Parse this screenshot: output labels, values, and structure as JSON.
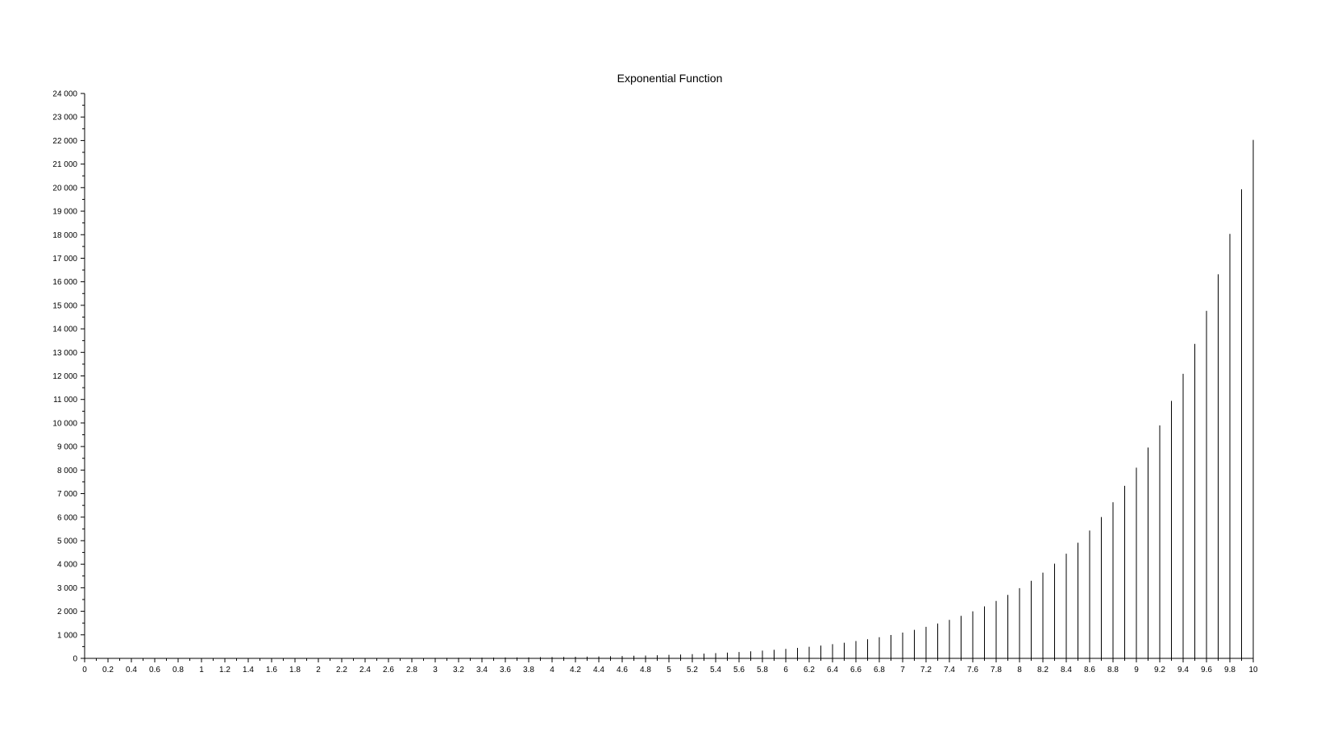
{
  "chart_data": {
    "type": "stem",
    "title": "Exponential Function",
    "xlabel": "",
    "ylabel": "",
    "xlim": [
      0,
      10
    ],
    "ylim": [
      0,
      24000
    ],
    "x_ticks": [
      0,
      0.2,
      0.4,
      0.6,
      0.8,
      1,
      1.2,
      1.4,
      1.6,
      1.8,
      2,
      2.2,
      2.4,
      2.6,
      2.8,
      3,
      3.2,
      3.4,
      3.6,
      3.8,
      4,
      4.2,
      4.4,
      4.6,
      4.8,
      5,
      5.2,
      5.4,
      5.6,
      5.8,
      6,
      6.2,
      6.4,
      6.6,
      6.8,
      7,
      7.2,
      7.4,
      7.6,
      7.8,
      8,
      8.2,
      8.4,
      8.6,
      8.8,
      9,
      9.2,
      9.4,
      9.6,
      9.8,
      10
    ],
    "x_tick_labels": [
      "0",
      "0.2",
      "0.4",
      "0.6",
      "0.8",
      "1",
      "1.2",
      "1.4",
      "1.6",
      "1.8",
      "2",
      "2.2",
      "2.4",
      "2.6",
      "2.8",
      "3",
      "3.2",
      "3.4",
      "3.6",
      "3.8",
      "4",
      "4.2",
      "4.4",
      "4.6",
      "4.8",
      "5",
      "5.2",
      "5.4",
      "5.6",
      "5.8",
      "6",
      "6.2",
      "6.4",
      "6.6",
      "6.8",
      "7",
      "7.2",
      "7.4",
      "7.6",
      "7.8",
      "8",
      "8.2",
      "8.4",
      "8.6",
      "8.8",
      "9",
      "9.2",
      "9.4",
      "9.6",
      "9.8",
      "10"
    ],
    "y_ticks": [
      0,
      1000,
      2000,
      3000,
      4000,
      5000,
      6000,
      7000,
      8000,
      9000,
      10000,
      11000,
      12000,
      13000,
      14000,
      15000,
      16000,
      17000,
      18000,
      19000,
      20000,
      21000,
      22000,
      23000,
      24000
    ],
    "y_tick_labels": [
      "0",
      "1 000",
      "2 000",
      "3 000",
      "4 000",
      "5 000",
      "6 000",
      "7 000",
      "8 000",
      "9 000",
      "10 000",
      "11 000",
      "12 000",
      "13 000",
      "14 000",
      "15 000",
      "16 000",
      "17 000",
      "18 000",
      "19 000",
      "20 000",
      "21 000",
      "22 000",
      "23 000",
      "24 000"
    ],
    "x": [
      0,
      0.1,
      0.2,
      0.3,
      0.4,
      0.5,
      0.6,
      0.7,
      0.8,
      0.9,
      1,
      1.1,
      1.2,
      1.3,
      1.4,
      1.5,
      1.6,
      1.7,
      1.8,
      1.9,
      2,
      2.1,
      2.2,
      2.3,
      2.4,
      2.5,
      2.6,
      2.7,
      2.8,
      2.9,
      3,
      3.1,
      3.2,
      3.3,
      3.4,
      3.5,
      3.6,
      3.7,
      3.8,
      3.9,
      4,
      4.1,
      4.2,
      4.3,
      4.4,
      4.5,
      4.6,
      4.7,
      4.8,
      4.9,
      5,
      5.1,
      5.2,
      5.3,
      5.4,
      5.5,
      5.6,
      5.7,
      5.8,
      5.9,
      6,
      6.1,
      6.2,
      6.3,
      6.4,
      6.5,
      6.6,
      6.7,
      6.8,
      6.9,
      7,
      7.1,
      7.2,
      7.3,
      7.4,
      7.5,
      7.6,
      7.7,
      7.8,
      7.9,
      8,
      8.1,
      8.2,
      8.3,
      8.4,
      8.5,
      8.6,
      8.7,
      8.8,
      8.9,
      9,
      9.1,
      9.2,
      9.3,
      9.4,
      9.5,
      9.6,
      9.7,
      9.8,
      9.9,
      10
    ],
    "values": [
      1,
      1.11,
      1.22,
      1.35,
      1.49,
      1.65,
      1.82,
      2.01,
      2.23,
      2.46,
      2.72,
      3.0,
      3.32,
      3.67,
      4.06,
      4.48,
      4.95,
      5.47,
      6.05,
      6.69,
      7.39,
      8.17,
      9.03,
      9.97,
      11.02,
      12.18,
      13.46,
      14.88,
      16.44,
      18.17,
      20.09,
      22.2,
      24.53,
      27.11,
      29.96,
      33.12,
      36.6,
      40.45,
      44.7,
      49.4,
      54.6,
      60.34,
      66.69,
      73.7,
      81.45,
      90.02,
      99.48,
      109.95,
      121.51,
      134.29,
      148.41,
      164.02,
      181.27,
      200.34,
      221.41,
      244.69,
      270.43,
      298.87,
      330.3,
      365.04,
      403.43,
      445.86,
      492.75,
      544.57,
      601.85,
      665.14,
      735.1,
      812.41,
      897.85,
      992.27,
      1096.63,
      1211.97,
      1339.43,
      1480.3,
      1635.98,
      1808.04,
      1998.2,
      2208.35,
      2440.6,
      2697.28,
      2980.96,
      3294.47,
      3640.95,
      4023.87,
      4447.07,
      4914.77,
      5431.66,
      6002.91,
      6634.24,
      7331.97,
      8103.08,
      8955.29,
      9897.13,
      10938.02,
      12088.38,
      13359.73,
      14764.78,
      16317.61,
      18033.74,
      19930.37,
      22026.47
    ],
    "grid": false,
    "legend": "none",
    "colors": {
      "stem": "#000000",
      "axis": "#000000",
      "text": "#000000",
      "background": "#ffffff"
    }
  }
}
